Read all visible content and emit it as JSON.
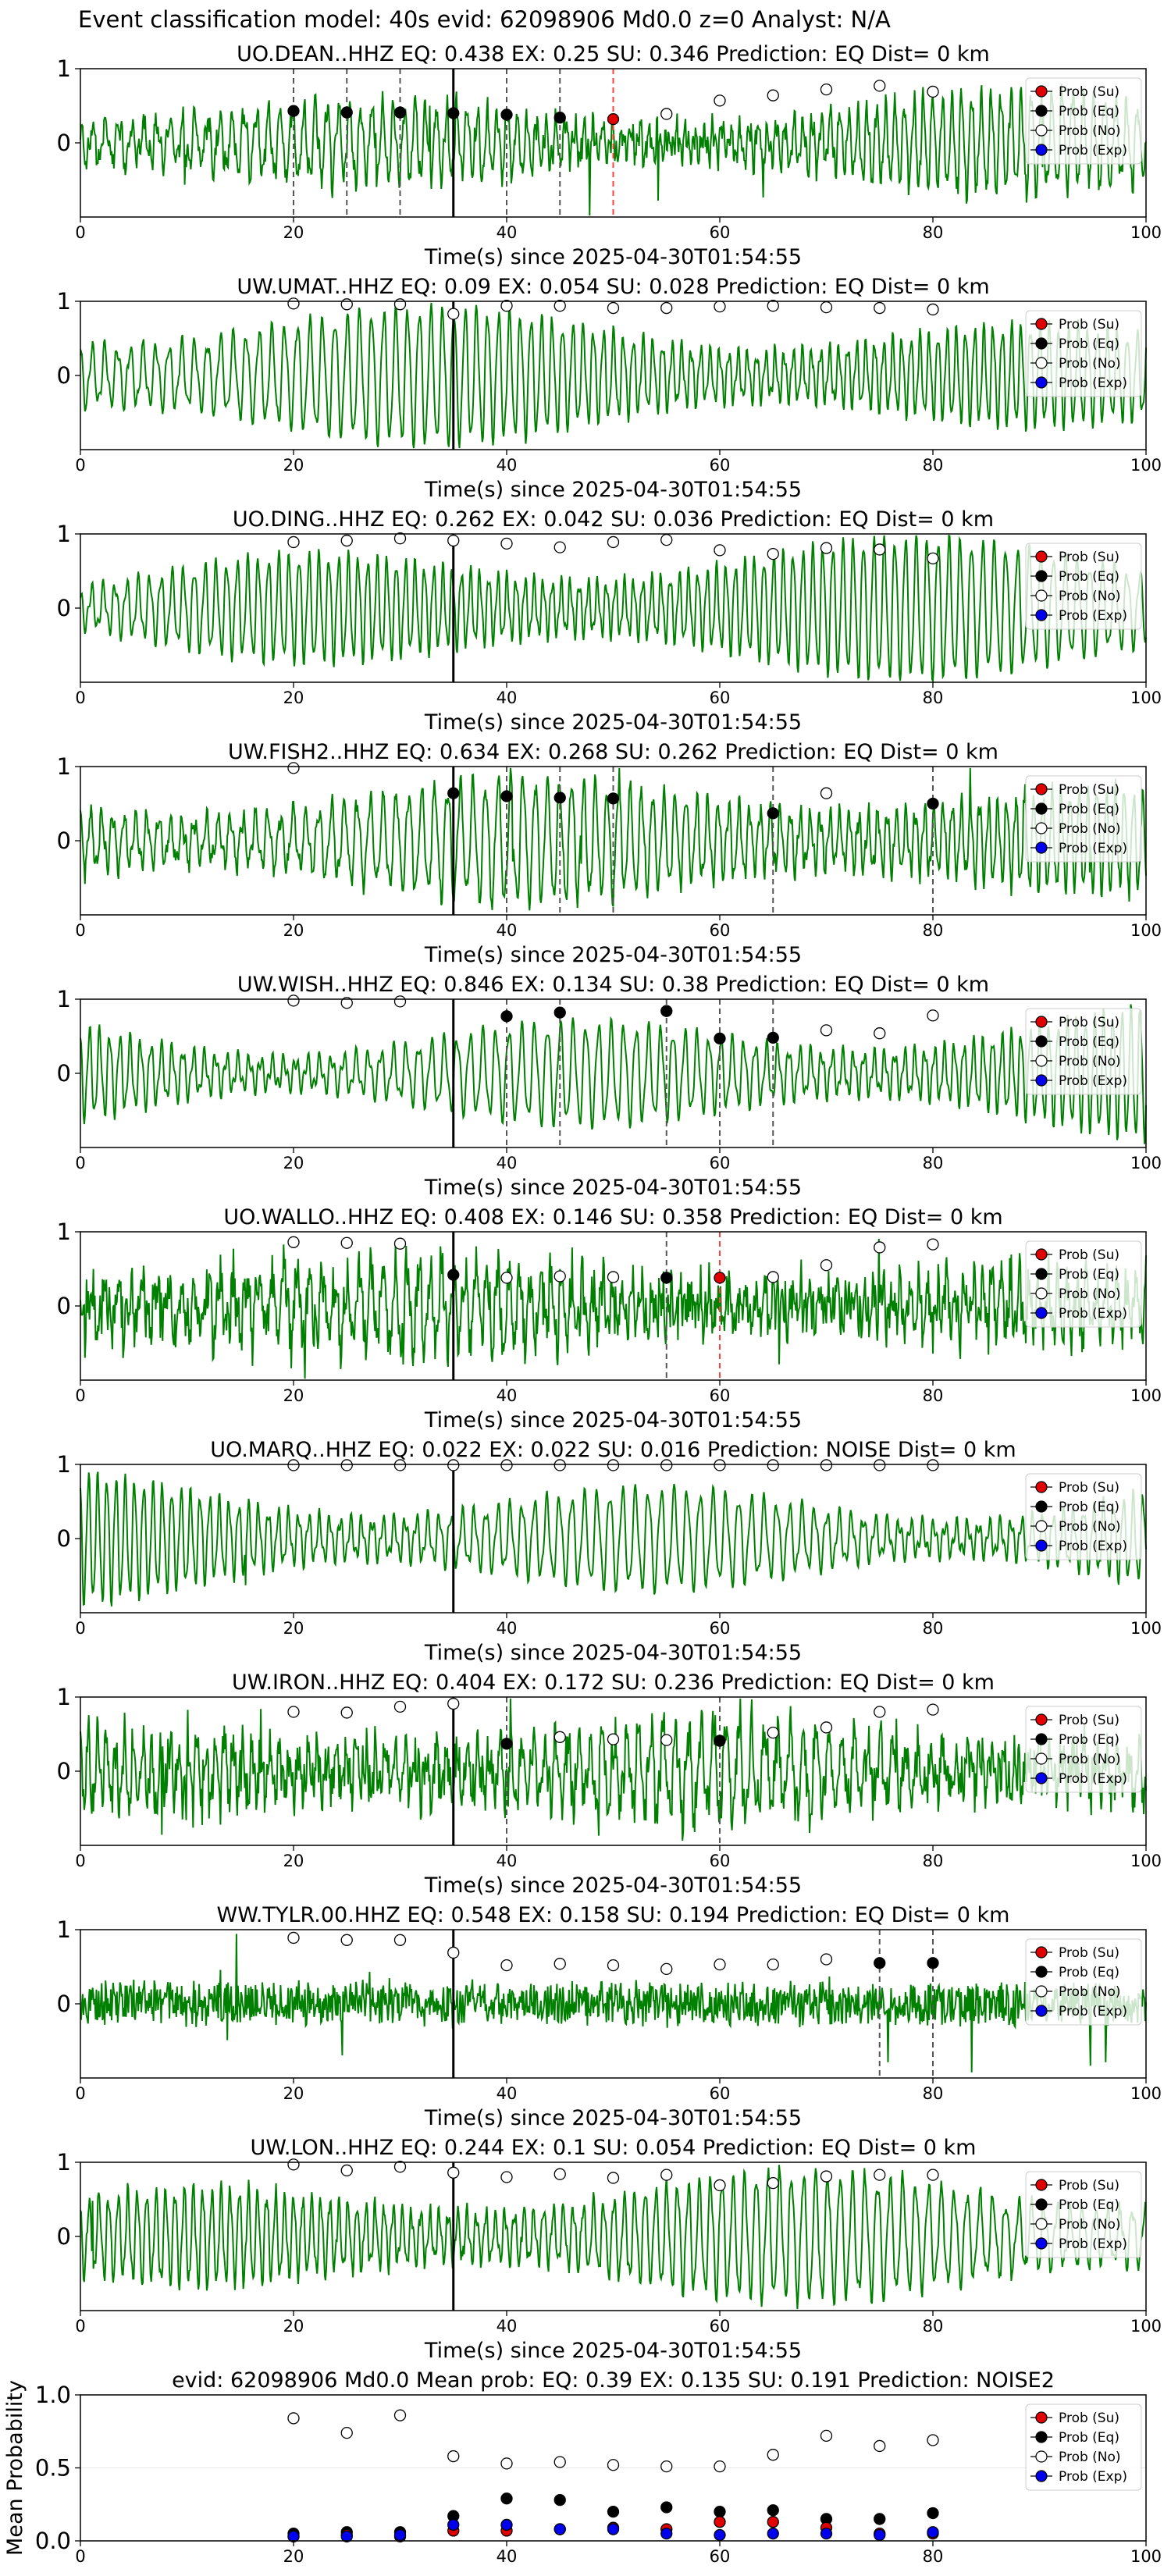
{
  "suptitle": "Event classification model: 40s evid: 62098906 Md0.0 z=0 Analyst: N/A",
  "colors": {
    "trace": "#008000",
    "su": "#e00000",
    "eq": "#000000",
    "no": "#ffffff",
    "exp": "#0000ee",
    "arrival": "#000000",
    "eq_pick": "#555555",
    "su_pick": "#ff4040"
  },
  "legend": [
    "Prob (Su)",
    "Prob (Eq)",
    "Prob (No)",
    "Prob (Exp)"
  ],
  "chart_data": [
    {
      "type": "line",
      "title": "UO.DEAN..HHZ   EQ: 0.438   EX: 0.25   SU: 0.346   Prediction: EQ    Dist= 0 km",
      "xlabel": "Time(s) since 2025-04-30T01:54:55",
      "xlim": [
        0,
        100
      ],
      "ylim": [
        -1,
        1
      ],
      "xticks": [
        "0",
        "20",
        "40",
        "60",
        "80",
        "100"
      ],
      "yticks": [
        "1",
        "0"
      ],
      "arrival": 35,
      "noise": 0.55,
      "seed": 11,
      "eq_points": [
        [
          20,
          0.43
        ],
        [
          25,
          0.41
        ],
        [
          30,
          0.41
        ],
        [
          35,
          0.4
        ],
        [
          40,
          0.38
        ],
        [
          45,
          0.34
        ]
      ],
      "su_points": [
        [
          50,
          0.32
        ]
      ],
      "no_points": [
        [
          55,
          0.39
        ],
        [
          60,
          0.57
        ],
        [
          65,
          0.64
        ],
        [
          70,
          0.72
        ],
        [
          75,
          0.77
        ],
        [
          80,
          0.69
        ]
      ],
      "eq_picks": [
        20,
        25,
        30,
        40,
        45
      ],
      "su_picks": [
        50
      ]
    },
    {
      "type": "line",
      "title": "UW.UMAT..HHZ   EQ: 0.09   EX: 0.054   SU: 0.028   Prediction: EQ    Dist= 0 km",
      "xlabel": "Time(s) since 2025-04-30T01:54:55",
      "xlim": [
        0,
        100
      ],
      "ylim": [
        -1,
        1
      ],
      "xticks": [
        "0",
        "20",
        "40",
        "60",
        "80",
        "100"
      ],
      "yticks": [
        "1",
        "0"
      ],
      "arrival": 35,
      "noise": 0.12,
      "seed": 23,
      "eq_points": [],
      "su_points": [],
      "no_points": [
        [
          20,
          0.97
        ],
        [
          25,
          0.96
        ],
        [
          30,
          0.96
        ],
        [
          35,
          0.83
        ],
        [
          40,
          0.94
        ],
        [
          45,
          0.94
        ],
        [
          50,
          0.91
        ],
        [
          55,
          0.91
        ],
        [
          60,
          0.93
        ],
        [
          65,
          0.94
        ],
        [
          70,
          0.92
        ],
        [
          75,
          0.91
        ],
        [
          80,
          0.89
        ]
      ],
      "eq_picks": [],
      "su_picks": []
    },
    {
      "type": "line",
      "title": "UO.DING..HHZ   EQ: 0.262   EX: 0.042   SU: 0.036   Prediction: EQ    Dist= 0 km",
      "xlabel": "Time(s) since 2025-04-30T01:54:55",
      "xlim": [
        0,
        100
      ],
      "ylim": [
        -1,
        1
      ],
      "xticks": [
        "0",
        "20",
        "40",
        "60",
        "80",
        "100"
      ],
      "yticks": [
        "1",
        "0"
      ],
      "arrival": 35,
      "noise": 0.03,
      "seed": 37,
      "eq_points": [],
      "su_points": [],
      "no_points": [
        [
          20,
          0.89
        ],
        [
          25,
          0.91
        ],
        [
          30,
          0.94
        ],
        [
          35,
          0.91
        ],
        [
          40,
          0.87
        ],
        [
          45,
          0.82
        ],
        [
          50,
          0.89
        ],
        [
          55,
          0.92
        ],
        [
          60,
          0.78
        ],
        [
          65,
          0.73
        ],
        [
          70,
          0.81
        ],
        [
          75,
          0.79
        ],
        [
          80,
          0.67
        ]
      ],
      "eq_picks": [],
      "su_picks": []
    },
    {
      "type": "line",
      "title": "UW.FISH2..HHZ   EQ: 0.634   EX: 0.268   SU: 0.262   Prediction: EQ    Dist= 0 km",
      "xlabel": "Time(s) since 2025-04-30T01:54:55",
      "xlim": [
        0,
        100
      ],
      "ylim": [
        -1,
        1
      ],
      "xticks": [
        "0",
        "20",
        "40",
        "60",
        "80",
        "100"
      ],
      "yticks": [
        "1",
        "0"
      ],
      "arrival": 35,
      "noise": 0.35,
      "seed": 41,
      "eq_points": [
        [
          35,
          0.64
        ],
        [
          40,
          0.6
        ],
        [
          45,
          0.58
        ],
        [
          50,
          0.57
        ],
        [
          65,
          0.37
        ],
        [
          80,
          0.5
        ]
      ],
      "su_points": [],
      "no_points": [
        [
          20,
          0.98
        ],
        [
          70,
          0.64
        ]
      ],
      "eq_picks": [
        40,
        45,
        50,
        65,
        80
      ],
      "su_picks": []
    },
    {
      "type": "line",
      "title": "UW.WISH..HHZ   EQ: 0.846   EX: 0.134   SU: 0.38   Prediction: EQ    Dist= 0 km",
      "xlabel": "Time(s) since 2025-04-30T01:54:55",
      "xlim": [
        0,
        100
      ],
      "ylim": [
        -1,
        1
      ],
      "xticks": [
        "0",
        "20",
        "40",
        "60",
        "80",
        "100"
      ],
      "yticks": [
        "1",
        "0"
      ],
      "arrival": 35,
      "noise": 0.03,
      "seed": 53,
      "eq_points": [
        [
          40,
          0.77
        ],
        [
          45,
          0.82
        ],
        [
          55,
          0.84
        ],
        [
          60,
          0.47
        ],
        [
          65,
          0.48
        ]
      ],
      "su_points": [],
      "no_points": [
        [
          20,
          0.98
        ],
        [
          25,
          0.95
        ],
        [
          30,
          0.97
        ],
        [
          70,
          0.58
        ],
        [
          75,
          0.54
        ],
        [
          80,
          0.78
        ]
      ],
      "eq_picks": [
        40,
        45,
        55,
        60,
        65
      ],
      "su_picks": []
    },
    {
      "type": "line",
      "title": "UO.WALLO..HHZ   EQ: 0.408   EX: 0.146   SU: 0.358   Prediction: EQ    Dist= 0 km",
      "xlabel": "Time(s) since 2025-04-30T01:54:55",
      "xlim": [
        0,
        100
      ],
      "ylim": [
        -1,
        1
      ],
      "xticks": [
        "0",
        "20",
        "40",
        "60",
        "80",
        "100"
      ],
      "yticks": [
        "1",
        "0"
      ],
      "arrival": 35,
      "noise": 1.2,
      "seed": 67,
      "eq_points": [
        [
          35,
          0.42
        ],
        [
          55,
          0.38
        ]
      ],
      "su_points": [
        [
          60,
          0.38
        ]
      ],
      "no_points": [
        [
          20,
          0.86
        ],
        [
          25,
          0.85
        ],
        [
          30,
          0.84
        ],
        [
          40,
          0.38
        ],
        [
          45,
          0.4
        ],
        [
          50,
          0.39
        ],
        [
          65,
          0.39
        ],
        [
          70,
          0.55
        ],
        [
          75,
          0.79
        ],
        [
          80,
          0.83
        ]
      ],
      "eq_picks": [
        55
      ],
      "su_picks": [
        60
      ]
    },
    {
      "type": "line",
      "title": "UO.MARQ..HHZ   EQ: 0.022   EX: 0.022   SU: 0.016   Prediction: NOISE    Dist= 0 km",
      "xlabel": "Time(s) since 2025-04-30T01:54:55",
      "xlim": [
        0,
        100
      ],
      "ylim": [
        -1,
        1
      ],
      "xticks": [
        "0",
        "20",
        "40",
        "60",
        "80",
        "100"
      ],
      "yticks": [
        "1",
        "0"
      ],
      "arrival": 35,
      "noise": 0.06,
      "seed": 71,
      "eq_points": [],
      "su_points": [],
      "no_points": [
        [
          20,
          0.99
        ],
        [
          25,
          0.99
        ],
        [
          30,
          0.99
        ],
        [
          35,
          0.99
        ],
        [
          40,
          0.99
        ],
        [
          45,
          0.99
        ],
        [
          50,
          0.99
        ],
        [
          55,
          0.99
        ],
        [
          60,
          0.99
        ],
        [
          65,
          0.99
        ],
        [
          70,
          0.99
        ],
        [
          75,
          0.99
        ],
        [
          80,
          0.99
        ]
      ],
      "eq_picks": [],
      "su_picks": []
    },
    {
      "type": "line",
      "title": "UW.IRON..HHZ   EQ: 0.404   EX: 0.172   SU: 0.236   Prediction: EQ    Dist= 0 km",
      "xlabel": "Time(s) since 2025-04-30T01:54:55",
      "xlim": [
        0,
        100
      ],
      "ylim": [
        -1,
        1
      ],
      "xticks": [
        "0",
        "20",
        "40",
        "60",
        "80",
        "100"
      ],
      "yticks": [
        "1",
        "0"
      ],
      "arrival": 35,
      "noise": 1.1,
      "seed": 83,
      "eq_points": [
        [
          40,
          0.37
        ],
        [
          60,
          0.41
        ]
      ],
      "su_points": [],
      "no_points": [
        [
          20,
          0.8
        ],
        [
          25,
          0.79
        ],
        [
          30,
          0.87
        ],
        [
          35,
          0.91
        ],
        [
          45,
          0.46
        ],
        [
          50,
          0.43
        ],
        [
          55,
          0.42
        ],
        [
          65,
          0.52
        ],
        [
          70,
          0.59
        ],
        [
          75,
          0.8
        ],
        [
          80,
          0.83
        ]
      ],
      "eq_picks": [
        40,
        60
      ],
      "su_picks": []
    },
    {
      "type": "line",
      "title": "WW.TYLR.00.HHZ   EQ: 0.548   EX: 0.158   SU: 0.194   Prediction: EQ    Dist= 0 km",
      "xlabel": "Time(s) since 2025-04-30T01:54:55",
      "xlim": [
        0,
        100
      ],
      "ylim": [
        -1,
        1
      ],
      "xticks": [
        "0",
        "20",
        "40",
        "60",
        "80",
        "100"
      ],
      "yticks": [
        "1",
        "0"
      ],
      "arrival": 35,
      "noise": 1.0,
      "seed": 97,
      "carrier": 0.05,
      "eq_points": [
        [
          75,
          0.55
        ],
        [
          80,
          0.55
        ]
      ],
      "su_points": [],
      "no_points": [
        [
          20,
          0.89
        ],
        [
          25,
          0.86
        ],
        [
          30,
          0.86
        ],
        [
          35,
          0.69
        ],
        [
          40,
          0.52
        ],
        [
          45,
          0.54
        ],
        [
          50,
          0.52
        ],
        [
          55,
          0.47
        ],
        [
          60,
          0.53
        ],
        [
          65,
          0.53
        ],
        [
          70,
          0.6
        ]
      ],
      "eq_picks": [
        75,
        80
      ],
      "su_picks": []
    },
    {
      "type": "line",
      "title": "UW.LON..HHZ   EQ: 0.244   EX: 0.1   SU: 0.054   Prediction: EQ    Dist= 0 km",
      "xlabel": "Time(s) since 2025-04-30T01:54:55",
      "xlim": [
        0,
        100
      ],
      "ylim": [
        -1,
        1
      ],
      "xticks": [
        "0",
        "20",
        "40",
        "60",
        "80",
        "100"
      ],
      "yticks": [
        "1",
        "0"
      ],
      "arrival": 35,
      "noise": 0.25,
      "seed": 101,
      "eq_points": [],
      "su_points": [],
      "no_points": [
        [
          20,
          0.97
        ],
        [
          25,
          0.89
        ],
        [
          30,
          0.94
        ],
        [
          35,
          0.86
        ],
        [
          40,
          0.8
        ],
        [
          45,
          0.84
        ],
        [
          50,
          0.79
        ],
        [
          55,
          0.83
        ],
        [
          60,
          0.69
        ],
        [
          65,
          0.72
        ],
        [
          70,
          0.81
        ],
        [
          75,
          0.83
        ],
        [
          80,
          0.83
        ]
      ],
      "eq_picks": [],
      "su_picks": []
    },
    {
      "type": "scatter",
      "title": "evid: 62098906  Md0.0   Mean prob:   EQ: 0.39  EX: 0.135  SU: 0.191   Prediction: NOISE2",
      "xlabel": "",
      "ylabel": "Mean Probability",
      "xlim": [
        0,
        100
      ],
      "ylim": [
        0,
        1
      ],
      "xticks": [
        "0",
        "20",
        "40",
        "60",
        "80",
        "100"
      ],
      "yticks": [
        "1.0",
        "0.5",
        "0.0"
      ],
      "no_points": [
        [
          20,
          0.84
        ],
        [
          25,
          0.74
        ],
        [
          30,
          0.86
        ],
        [
          35,
          0.58
        ],
        [
          40,
          0.53
        ],
        [
          45,
          0.54
        ],
        [
          50,
          0.52
        ],
        [
          55,
          0.51
        ],
        [
          60,
          0.51
        ],
        [
          65,
          0.59
        ],
        [
          70,
          0.72
        ],
        [
          75,
          0.65
        ],
        [
          80,
          0.69
        ]
      ],
      "eq_points": [
        [
          20,
          0.05
        ],
        [
          25,
          0.06
        ],
        [
          30,
          0.06
        ],
        [
          35,
          0.17
        ],
        [
          40,
          0.29
        ],
        [
          45,
          0.28
        ],
        [
          50,
          0.2
        ],
        [
          55,
          0.23
        ],
        [
          60,
          0.2
        ],
        [
          65,
          0.21
        ],
        [
          70,
          0.15
        ],
        [
          75,
          0.15
        ],
        [
          80,
          0.19
        ]
      ],
      "su_points": [
        [
          20,
          0.03
        ],
        [
          25,
          0.04
        ],
        [
          30,
          0.03
        ],
        [
          35,
          0.07
        ],
        [
          40,
          0.07
        ],
        [
          45,
          0.08
        ],
        [
          50,
          0.09
        ],
        [
          55,
          0.08
        ],
        [
          60,
          0.13
        ],
        [
          65,
          0.13
        ],
        [
          70,
          0.09
        ],
        [
          75,
          0.05
        ],
        [
          80,
          0.05
        ]
      ],
      "exp_points": [
        [
          20,
          0.03
        ],
        [
          25,
          0.03
        ],
        [
          30,
          0.04
        ],
        [
          35,
          0.11
        ],
        [
          40,
          0.11
        ],
        [
          45,
          0.08
        ],
        [
          50,
          0.08
        ],
        [
          55,
          0.05
        ],
        [
          60,
          0.04
        ],
        [
          65,
          0.05
        ],
        [
          70,
          0.05
        ],
        [
          75,
          0.04
        ],
        [
          80,
          0.06
        ]
      ],
      "eq_picks": [],
      "su_picks": []
    }
  ]
}
